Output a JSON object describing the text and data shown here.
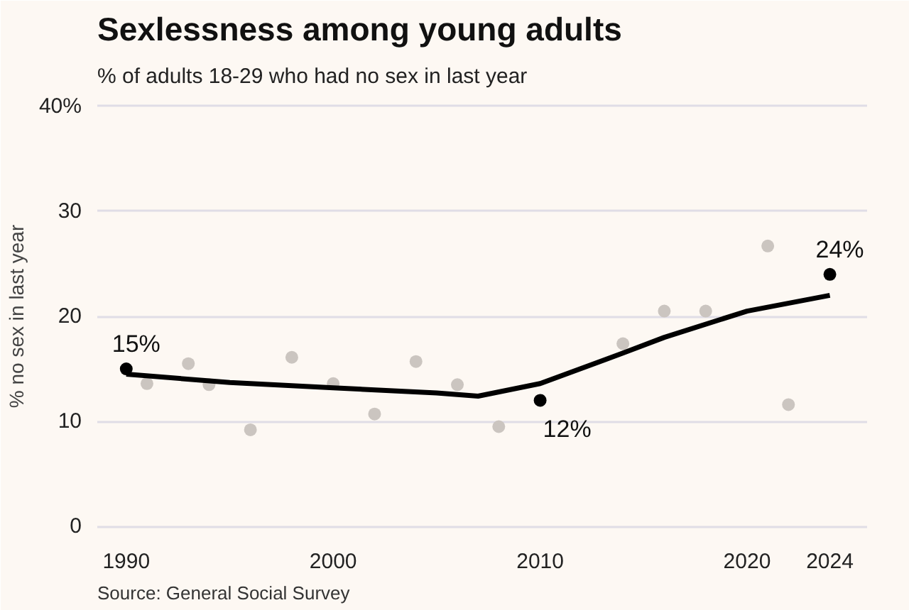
{
  "chart_data": {
    "type": "scatter",
    "title": "Sexlessness among young adults",
    "subtitle": "% of adults 18-29 who had no sex in last year",
    "ylabel": "% no sex in last year",
    "annotations": [
      "Source: General Social Survey"
    ],
    "xlim": [
      1988.6,
      2025.8
    ],
    "xticks": [
      1990,
      2000,
      2010,
      2020,
      2024
    ],
    "ylim": [
      -1,
      41
    ],
    "yticks": [
      0,
      10,
      20,
      30,
      {
        "value": 40,
        "label": "40%"
      }
    ],
    "grid": "y",
    "marker": "circle",
    "series": [
      {
        "color": "#cbc5c0",
        "x": [
          1991,
          1993,
          1994,
          1996,
          1998,
          2000,
          2002,
          2004,
          2006,
          2008,
          2014,
          2016,
          2018,
          2021,
          2022
        ],
        "values": [
          13.6,
          15.5,
          13.5,
          9.2,
          16.1,
          13.6,
          10.7,
          15.7,
          13.5,
          9.5,
          17.4,
          20.5,
          20.5,
          26.7,
          11.6
        ]
      },
      {
        "type": "line",
        "color": "#000000",
        "line_style": "solid",
        "marker": "none",
        "x": [
          1990,
          1995,
          2000,
          2005,
          2007,
          2010,
          2014,
          2016,
          2020,
          2024
        ],
        "values": [
          14.5,
          13.7,
          13.2,
          12.7,
          12.4,
          13.6,
          16.5,
          18,
          20.5,
          22
        ]
      },
      {
        "color": "#000000",
        "x": [
          1990,
          2010,
          2024
        ],
        "values": [
          15,
          12,
          24
        ],
        "value_labels": [
          "15%",
          "12%",
          "24%"
        ]
      }
    ]
  }
}
